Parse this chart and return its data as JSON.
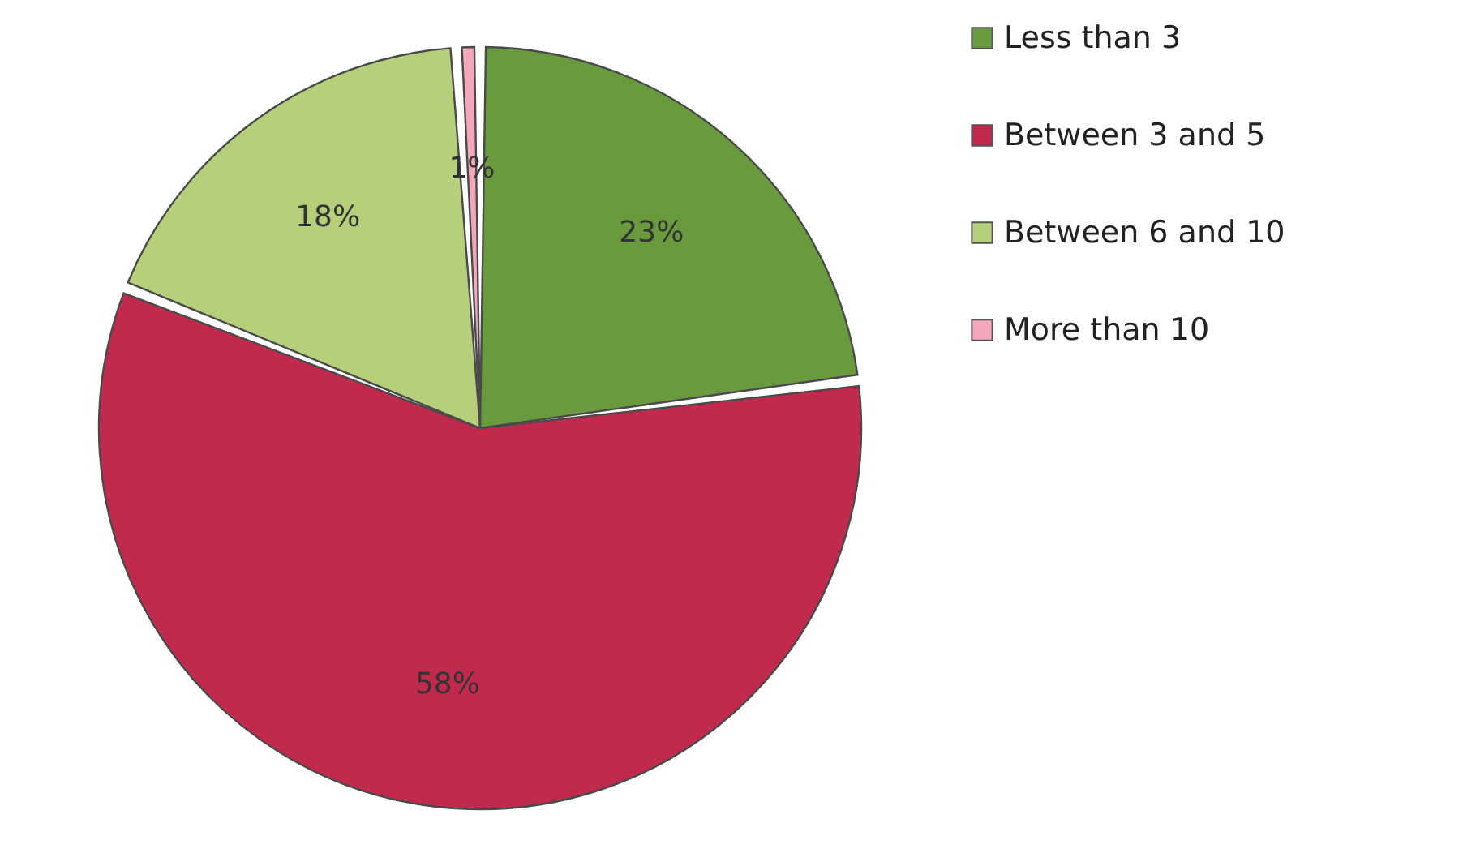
{
  "chart_data": {
    "type": "pie",
    "categories": [
      "Less than 3",
      "Between 3 and 5",
      "Between 6 and 10",
      "More than 10"
    ],
    "values": [
      23,
      58,
      18,
      1
    ],
    "colors": [
      "#6a9a3e",
      "#c12a4c",
      "#b5cf7a",
      "#f4a7ba"
    ],
    "value_labels": [
      "23%",
      "58%",
      "18%",
      "1%"
    ],
    "legend": "right"
  }
}
